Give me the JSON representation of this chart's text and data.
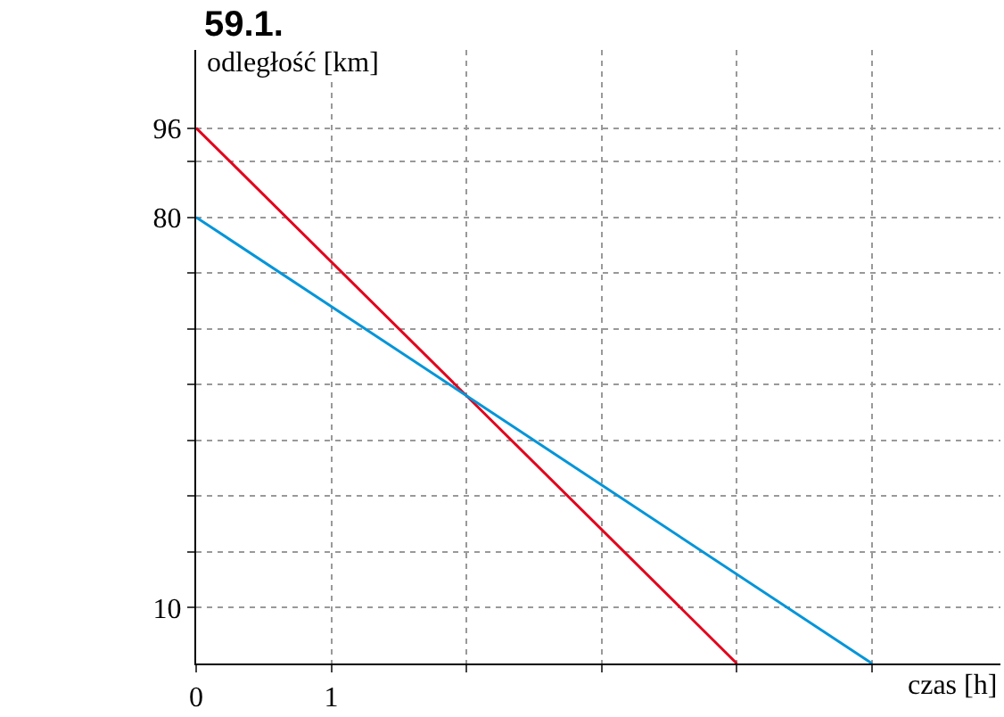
{
  "chart_data": {
    "type": "line",
    "title": "59.1.",
    "xlabel": "czas [h]",
    "ylabel": "odległość [km]",
    "series": [
      {
        "color": "#e3001b",
        "x": [
          0,
          4
        ],
        "values": [
          96,
          0
        ]
      },
      {
        "color": "#0095d9",
        "x": [
          0,
          5
        ],
        "values": [
          80,
          0
        ]
      }
    ],
    "xlim": [
      0,
      5.95
    ],
    "ylim": [
      0,
      110
    ],
    "xticks": [
      {
        "value": 0,
        "label": "0"
      },
      1,
      {
        "value": 2,
        "label": null
      },
      {
        "value": 3,
        "label": null
      },
      {
        "value": 4,
        "label": null
      },
      {
        "value": 5,
        "label": null
      }
    ],
    "yticks": [
      10,
      {
        "value": 20,
        "label": null
      },
      {
        "value": 30,
        "label": null
      },
      {
        "value": 40,
        "label": null
      },
      {
        "value": 50,
        "label": null
      },
      {
        "value": 60,
        "label": null
      },
      {
        "value": 70,
        "label": null
      },
      80,
      {
        "value": 90,
        "label": null
      },
      96
    ],
    "grid": true,
    "marker": "none",
    "line_style": "solid"
  }
}
